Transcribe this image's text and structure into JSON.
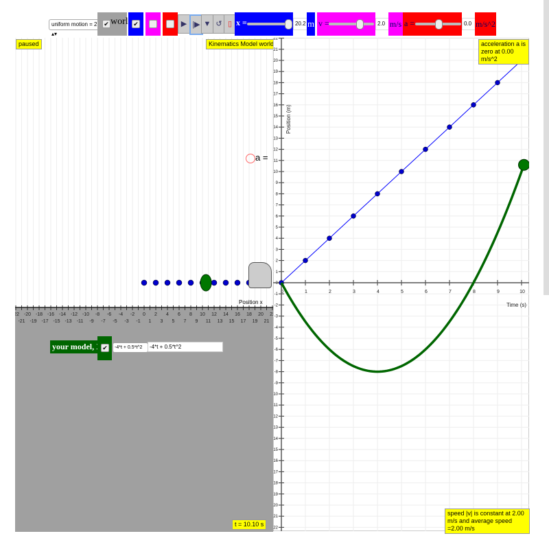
{
  "toolbar": {
    "motion_select": "uniform motion = 2",
    "world_label": "world",
    "x_label": "x =",
    "x_value": "20.2",
    "x_unit": "m",
    "x_fraction": 0.98,
    "v_label": "v =",
    "v_value": "2.0",
    "v_unit": "m/s",
    "v_fraction": 0.7,
    "a_label": "a =",
    "a_value": "0.0",
    "a_unit": "m/s^2",
    "a_fraction": 0.5,
    "colors": {
      "x": "#0000ff",
      "v": "#ff00ff",
      "a": "#ff0000",
      "world": "#a0a0a0"
    }
  },
  "world": {
    "status": "paused",
    "title": "Kinematics Model world view",
    "time": "t = 10.10 s",
    "axis_ticks": [
      -22,
      -21,
      -20,
      -19,
      -18,
      -17,
      -16,
      -15,
      -14,
      -13,
      -12,
      -11,
      -10,
      -9,
      -8,
      -7,
      -6,
      -5,
      -4,
      -3,
      -2,
      -1,
      0,
      1,
      2,
      3,
      4,
      5,
      6,
      7,
      8,
      9,
      10,
      11,
      12,
      13,
      14,
      15,
      16,
      17,
      18,
      19,
      20,
      21,
      22
    ],
    "car_label": "Position x",
    "a_marker": "a =",
    "dots_x": [
      0,
      2,
      4,
      6,
      8,
      10,
      12,
      14,
      16,
      18,
      20
    ],
    "model_ball_x": 10.6
  },
  "model": {
    "label": "your model, X =",
    "select_value": "-4*t + 0.5*t^2",
    "input_value": "-4*t + 0.5*t^2",
    "color": "#006600"
  },
  "chart_data": {
    "type": "line",
    "xlabel": "Time (s)",
    "ylabel": "Position (m)",
    "xlim": [
      0,
      10.5
    ],
    "ylim": [
      -22,
      22
    ],
    "x_ticks": [
      0,
      1,
      2,
      3,
      4,
      5,
      6,
      7,
      8,
      9,
      10
    ],
    "y_ticks": [
      -22,
      -21,
      -20,
      -19,
      -18,
      -17,
      -16,
      -15,
      -14,
      -13,
      -12,
      -11,
      -10,
      -9,
      -8,
      -7,
      -6,
      -5,
      -4,
      -3,
      -2,
      -1,
      0,
      1,
      2,
      3,
      4,
      5,
      6,
      7,
      8,
      9,
      10,
      11,
      12,
      13,
      14,
      15,
      16,
      17,
      18,
      19,
      20,
      21,
      22
    ],
    "grid": true,
    "series": [
      {
        "color": "#0000ff",
        "x": [
          0,
          1,
          2,
          3,
          4,
          5,
          6,
          7,
          8,
          9,
          10,
          10.1
        ],
        "y": [
          0,
          2,
          4,
          6,
          8,
          10,
          12,
          14,
          16,
          18,
          20,
          20.2
        ],
        "markers": true
      },
      {
        "color": "#006600",
        "formula": "-4*t + 0.5*t^2",
        "x": [
          0,
          1,
          2,
          3,
          4,
          5,
          6,
          7,
          8,
          9,
          10,
          10.1
        ],
        "y": [
          0,
          -3.5,
          -6,
          -7.5,
          -8,
          -7.5,
          -6,
          -3.5,
          0,
          4.5,
          10,
          10.6
        ]
      }
    ],
    "annotations": [
      "acceleration a is zero at 0.00 m/s^2",
      "speed |v| is constant at 2.00 m/s and average speed =2.00 m/s"
    ]
  }
}
